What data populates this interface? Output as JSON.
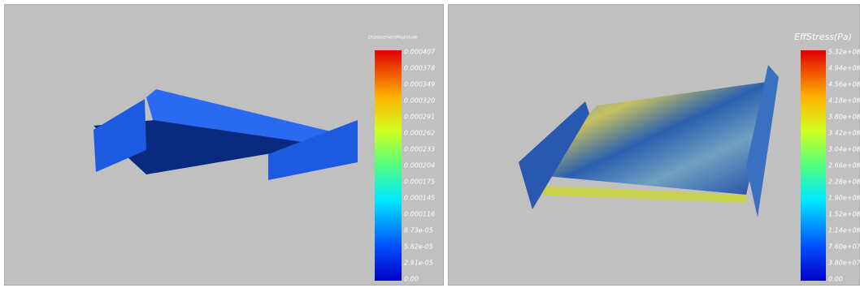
{
  "panels": [
    {
      "legend": {
        "title": "DisplacementMagnitude",
        "labels": [
          "0.000407",
          "0.000378",
          "0.000349",
          "0.000320",
          "0.000291",
          "0.000262",
          "0.000233",
          "0.000204",
          "0.000175",
          "0.000145",
          "0.000116",
          "8.73e-05",
          "5.82e-05",
          "2.91e-05",
          "0.00"
        ]
      }
    },
    {
      "legend": {
        "title": "EffStress(Pa)",
        "labels": [
          "5.32e+08",
          "4.94e+08",
          "4.56e+08",
          "4.18e+08",
          "3.80e+08",
          "3.42e+08",
          "3.04e+08",
          "2.66e+08",
          "2.28e+08",
          "1.90e+08",
          "1.52e+08",
          "1.14e+08",
          "7.60e+07",
          "3.80e+07",
          "0.00"
        ]
      }
    }
  ]
}
